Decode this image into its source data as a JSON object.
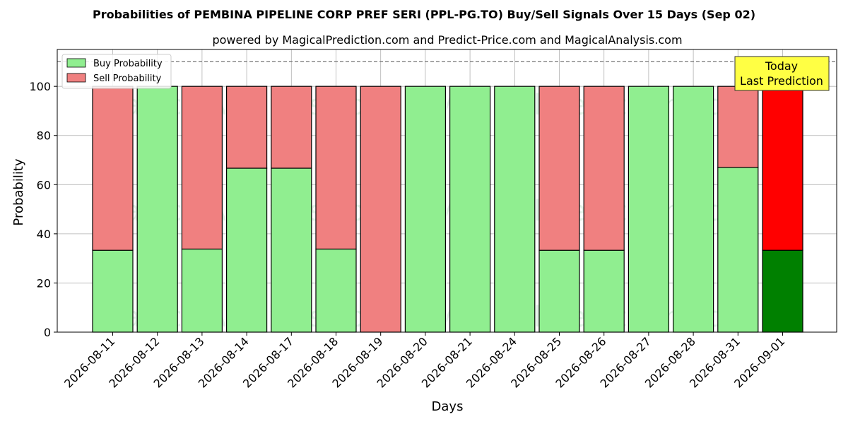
{
  "chart_data": {
    "type": "bar",
    "stacked": true,
    "title": "Probabilities of PEMBINA PIPELINE CORP PREF SERI (PPL-PG.TO) Buy/Sell Signals Over 15 Days (Sep 02)",
    "subtitle": "powered by MagicalPrediction.com and Predict-Price.com and MagicalAnalysis.com",
    "xlabel": "Days",
    "ylabel": "Probability",
    "ylim": [
      0,
      115
    ],
    "yticks": [
      0,
      20,
      40,
      60,
      80,
      100
    ],
    "grid": true,
    "legend_position": "top-left",
    "reference_line": 110,
    "categories": [
      "2026-08-11",
      "2026-08-12",
      "2026-08-13",
      "2026-08-14",
      "2026-08-17",
      "2026-08-18",
      "2026-08-19",
      "2026-08-20",
      "2026-08-21",
      "2026-08-24",
      "2026-08-25",
      "2026-08-26",
      "2026-08-27",
      "2026-08-28",
      "2026-08-31",
      "2026-09-01"
    ],
    "series": [
      {
        "name": "Buy Probability",
        "color": "#90ee90",
        "highlight_color": "#008000",
        "values": [
          33.3,
          100,
          33.8,
          66.7,
          66.7,
          33.8,
          0,
          100,
          100,
          100,
          33.3,
          33.3,
          100,
          100,
          67,
          33.3
        ]
      },
      {
        "name": "Sell Probability",
        "color": "#f08080",
        "highlight_color": "#ff0000",
        "values": [
          66.7,
          0,
          66.2,
          33.3,
          33.3,
          66.2,
          100,
          0,
          0,
          0,
          66.7,
          66.7,
          0,
          0,
          33,
          66.7
        ]
      }
    ],
    "highlight_index": 15,
    "annotation": {
      "line1": "Today",
      "line2": "Last Prediction",
      "background": "#ffff44"
    },
    "watermarks": [
      "MagicalAnalysis.com",
      "MagicalPrediction.com"
    ]
  }
}
